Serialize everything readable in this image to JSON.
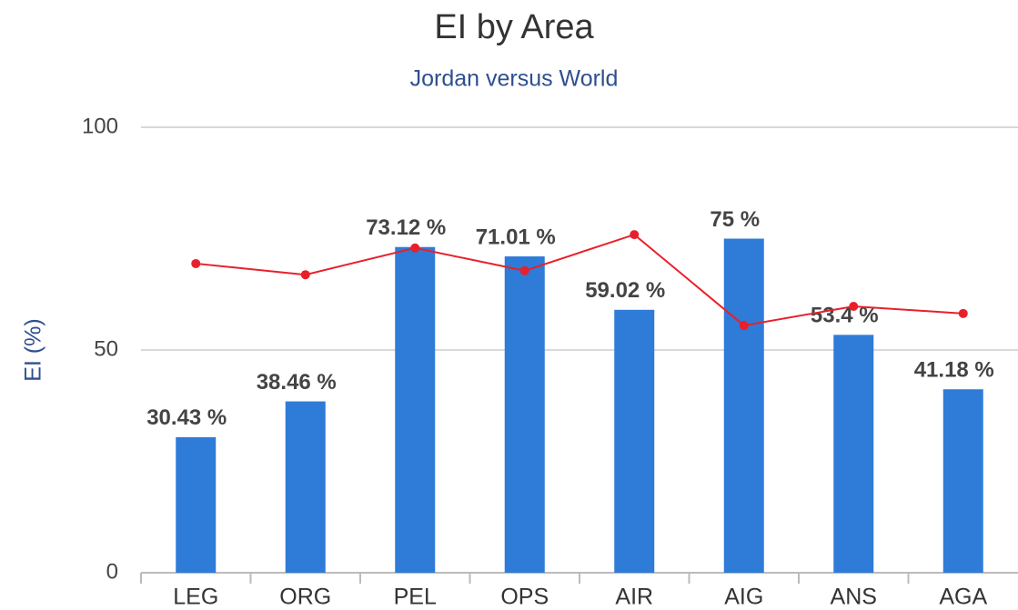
{
  "chart_data": {
    "type": "bar",
    "title": "EI by Area",
    "subtitle": "Jordan versus World",
    "y_label": "EI (%)",
    "categories": [
      "LEG",
      "ORG",
      "PEL",
      "OPS",
      "AIR",
      "AIG",
      "ANS",
      "AGA"
    ],
    "series": [
      {
        "type": "bar",
        "color": "#2f7bd8",
        "values": [
          30.43,
          38.46,
          73.12,
          71.01,
          59.02,
          75,
          53.4,
          41.18
        ],
        "value_labels": [
          "30.43 %",
          "38.46 %",
          "73.12 %",
          "71.01 %",
          "59.02 %",
          "75 %",
          "53.4 %",
          "41.18 %"
        ]
      },
      {
        "type": "line",
        "color": "#e8202a",
        "values": [
          69.4,
          66.9,
          72.9,
          67.8,
          75.9,
          55.5,
          59.8,
          58.2
        ]
      }
    ],
    "ylim": [
      0,
      100
    ],
    "yticks": [
      0,
      50,
      100
    ],
    "grid": true
  }
}
